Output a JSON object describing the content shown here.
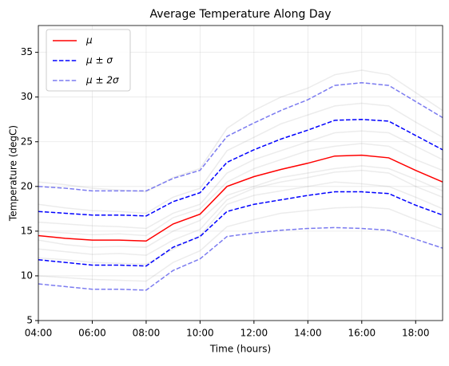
{
  "chart_data": {
    "type": "line",
    "title": "Average Temperature Along Day",
    "x_label": "Time (hours)",
    "y_label": "Temperature (degC)",
    "x": [
      4,
      5,
      6,
      7,
      8,
      9,
      10,
      11,
      12,
      13,
      14,
      15,
      16,
      17,
      18,
      19
    ],
    "xlim": [
      4,
      19
    ],
    "xticks": [
      {
        "value": 4,
        "label": "04:00"
      },
      {
        "value": 6,
        "label": "06:00"
      },
      {
        "value": 8,
        "label": "08:00"
      },
      {
        "value": 10,
        "label": "10:00"
      },
      {
        "value": 12,
        "label": "12:00"
      },
      {
        "value": 14,
        "label": "14:00"
      },
      {
        "value": 16,
        "label": "16:00"
      },
      {
        "value": 18,
        "label": "18:00"
      }
    ],
    "ylim": [
      5,
      38
    ],
    "yticks": [
      5,
      10,
      15,
      20,
      25,
      30,
      35
    ],
    "grid": true,
    "legend": "upper left",
    "background_lines": {
      "color": "#808080",
      "alpha": 0.15,
      "values": [
        [
          12,
          11.8,
          11.5,
          11.4,
          11.3,
          13,
          14.5,
          18,
          19,
          19.5,
          20,
          20.5,
          20.3,
          20,
          18.8,
          17.5
        ],
        [
          16,
          15.8,
          15.6,
          15.5,
          15.3,
          17,
          18,
          21.5,
          23,
          24,
          25,
          26,
          26.2,
          26,
          24.5,
          23
        ],
        [
          14,
          13.5,
          13.2,
          13.3,
          13.2,
          15,
          16.2,
          19,
          20,
          21,
          21.5,
          22,
          22.3,
          22,
          20.8,
          19.5
        ],
        [
          18,
          17.6,
          17.3,
          17.2,
          17,
          18.8,
          19.8,
          24,
          25.5,
          27,
          28,
          29,
          29.3,
          29,
          27.2,
          25.5
        ],
        [
          10,
          9.8,
          9.6,
          9.5,
          9.4,
          11.5,
          12.8,
          15.5,
          16.3,
          17,
          17.3,
          17.6,
          17.7,
          17.5,
          16.3,
          15.2
        ],
        [
          15,
          14.8,
          14.6,
          14.7,
          14.5,
          16.5,
          17.5,
          20.5,
          22,
          23,
          24,
          24.5,
          24.8,
          24.5,
          23,
          21.8
        ],
        [
          13,
          12.7,
          12.4,
          12.5,
          12.3,
          14,
          15.2,
          18.5,
          19.8,
          20.5,
          21,
          21.6,
          21.8,
          21.5,
          20,
          18.8
        ],
        [
          20.5,
          20.2,
          19.8,
          19.6,
          19.4,
          21,
          22,
          26.5,
          28.5,
          30,
          31,
          32.5,
          33,
          32.5,
          30.5,
          28.5
        ]
      ]
    },
    "series": [
      {
        "name": "μ",
        "color": "#ff0000",
        "dashed": false,
        "values": [
          14.5,
          14.2,
          14.0,
          14.0,
          13.9,
          15.8,
          16.9,
          20.0,
          21.1,
          21.9,
          22.6,
          23.4,
          23.5,
          23.2,
          21.8,
          20.5
        ]
      },
      {
        "name": "μ ± σ",
        "color": "#0000ff",
        "dashed": true,
        "upper": [
          17.2,
          17.0,
          16.8,
          16.8,
          16.7,
          18.3,
          19.3,
          22.7,
          24.1,
          25.3,
          26.3,
          27.4,
          27.5,
          27.3,
          25.7,
          24.1
        ],
        "lower": [
          11.8,
          11.5,
          11.2,
          11.2,
          11.1,
          13.2,
          14.4,
          17.2,
          18.0,
          18.5,
          19.0,
          19.4,
          19.4,
          19.2,
          17.9,
          16.8
        ]
      },
      {
        "name": "μ ± 2σ",
        "color": "#7b7bf0",
        "dashed": true,
        "upper": [
          20.0,
          19.8,
          19.5,
          19.5,
          19.5,
          20.9,
          21.8,
          25.6,
          27.1,
          28.5,
          29.7,
          31.3,
          31.6,
          31.3,
          29.5,
          27.7
        ],
        "lower": [
          9.1,
          8.8,
          8.5,
          8.5,
          8.4,
          10.6,
          11.9,
          14.4,
          14.8,
          15.1,
          15.3,
          15.4,
          15.3,
          15.1,
          14.1,
          13.1
        ]
      }
    ]
  }
}
